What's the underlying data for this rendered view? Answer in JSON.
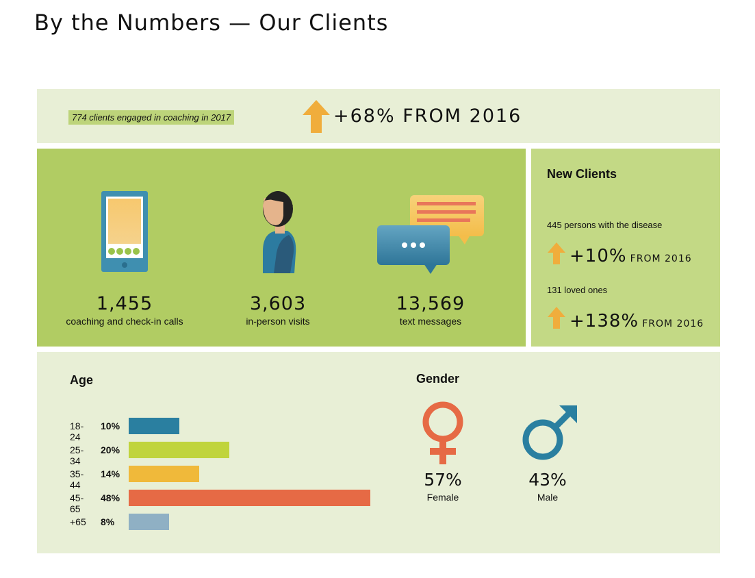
{
  "title": "By the Numbers — Our Clients",
  "engagement": {
    "summary": "774 clients engaged in coaching in 2017",
    "change": "+68% FROM 2016"
  },
  "stats": [
    {
      "value": "1,455",
      "label": "coaching and check-in calls",
      "icon": "tablet-icon"
    },
    {
      "value": "3,603",
      "label": "in-person visits",
      "icon": "person-icon"
    },
    {
      "value": "13,569",
      "label": "text messages",
      "icon": "chat-bubbles-icon"
    }
  ],
  "new_clients": {
    "title": "New Clients",
    "groups": [
      {
        "label": "445 persons with the disease",
        "pct": "+10%",
        "from": "FROM 2016"
      },
      {
        "label": "131 loved ones",
        "pct": "+138%",
        "from": "FROM 2016"
      }
    ]
  },
  "colors": {
    "arrow": "#f0ad3c",
    "teal": "#2a7fa0",
    "lime": "#c0d43c",
    "amber": "#f0b93a",
    "orange": "#e66a45",
    "lightblue": "#8fb0c4",
    "female": "#e66a45",
    "male": "#2a7fa0"
  },
  "chart_data": [
    {
      "type": "bar",
      "title": "Age",
      "orientation": "horizontal",
      "categories": [
        "18-24",
        "25-34",
        "35-44",
        "45-65",
        "+65"
      ],
      "labels": [
        "10%",
        "20%",
        "14%",
        "48%",
        "8%"
      ],
      "values": [
        10,
        20,
        14,
        48,
        8
      ],
      "colors": [
        "#2a7fa0",
        "#c0d43c",
        "#f0b93a",
        "#e66a45",
        "#8fb0c4"
      ]
    },
    {
      "type": "table",
      "title": "Gender",
      "categories": [
        "Female",
        "Male"
      ],
      "labels": [
        "57%",
        "43%"
      ],
      "values": [
        57,
        43
      ],
      "icons": [
        "female-symbol-icon",
        "male-symbol-icon"
      ]
    }
  ]
}
